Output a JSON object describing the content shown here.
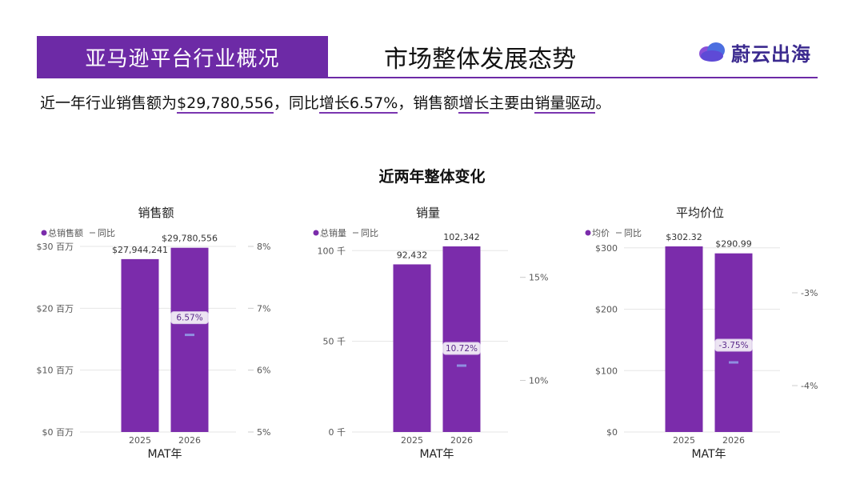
{
  "header": {
    "section": "亚马逊平台行业概况",
    "title": "市场整体发展态势",
    "logo_text": "蔚云出海",
    "logo_icon": "cloud-icon"
  },
  "summary": {
    "p1": "近一年行业销售额为",
    "amount": "$29,780,556",
    "p2": "，同比",
    "growth": "增长6.57%",
    "p3": "，销售额",
    "growth2": "增长",
    "p4": "主要由",
    "driver": "销量驱动",
    "p5": "。"
  },
  "section_title": "近两年整体变化",
  "colors": {
    "bar": "#7b2cab",
    "yoy": "#8f8fe0",
    "grid": "#e6e6e6",
    "accent": "#6d2aa6"
  },
  "chart_data": [
    {
      "type": "bar",
      "title": "销售额",
      "legend": [
        "总销售额",
        "同比"
      ],
      "xlabel": "MAT年",
      "categories": [
        "2025",
        "2026"
      ],
      "values": [
        27944241,
        29780556
      ],
      "value_labels": [
        "$27,944,241",
        "$29,780,556"
      ],
      "ylim": [
        0,
        30000000
      ],
      "yticks": [
        0,
        10000000,
        20000000,
        30000000
      ],
      "ytick_labels": [
        "$0 百万",
        "$10 百万",
        "$20 百万",
        "$30 百万"
      ],
      "yoy": {
        "category": "2026",
        "value": 6.57,
        "label": "6.57%"
      },
      "y2lim": [
        5,
        8
      ],
      "y2ticks": [
        5,
        6,
        7,
        8
      ],
      "y2tick_labels": [
        "5%",
        "6%",
        "7%",
        "8%"
      ]
    },
    {
      "type": "bar",
      "title": "销量",
      "legend": [
        "总销量",
        "同比"
      ],
      "xlabel": "MAT年",
      "categories": [
        "2025",
        "2026"
      ],
      "values": [
        92432,
        102342
      ],
      "value_labels": [
        "92,432",
        "102,342"
      ],
      "ylim": [
        0,
        102342
      ],
      "yticks": [
        0,
        50000,
        100000
      ],
      "ytick_labels": [
        "0 千",
        "50 千",
        "100 千"
      ],
      "yoy": {
        "category": "2026",
        "value": 10.72,
        "label": "10.72%"
      },
      "y2lim": [
        7.5,
        16.5
      ],
      "y2ticks": [
        10,
        15
      ],
      "y2tick_labels": [
        "10%",
        "15%"
      ]
    },
    {
      "type": "bar",
      "title": "平均价位",
      "legend": [
        "均价",
        "同比"
      ],
      "xlabel": "MAT年",
      "categories": [
        "2025",
        "2026"
      ],
      "values": [
        302.32,
        290.99
      ],
      "value_labels": [
        "$302.32",
        "$290.99"
      ],
      "ylim": [
        0,
        302.32
      ],
      "yticks": [
        0,
        100,
        200,
        300
      ],
      "ytick_labels": [
        "$0",
        "$100",
        "$200",
        "$300"
      ],
      "yoy": {
        "category": "2026",
        "value": -3.75,
        "label": "-3.75%"
      },
      "y2lim": [
        -4.5,
        -2.5
      ],
      "y2ticks": [
        -4,
        -3
      ],
      "y2tick_labels": [
        "-4%",
        "-3%"
      ]
    }
  ]
}
